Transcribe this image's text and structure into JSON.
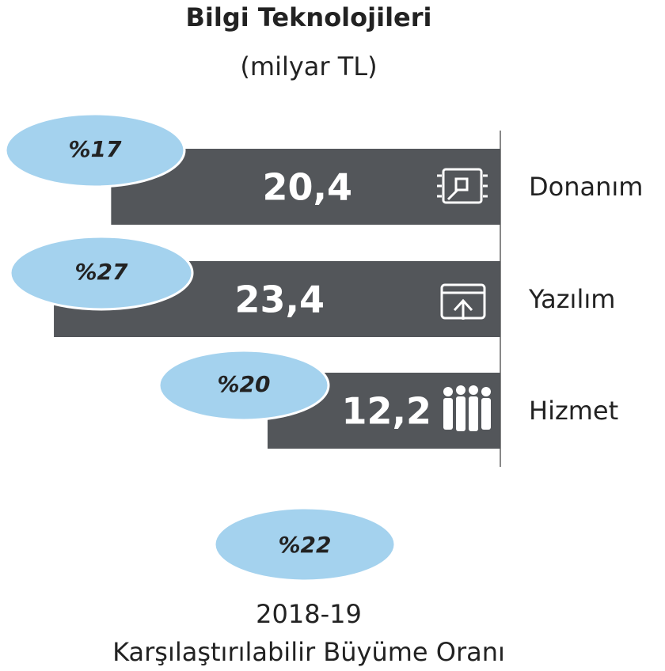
{
  "chart_data": {
    "type": "bar",
    "orientation": "horizontal",
    "title": "Bilgi Teknolojileri",
    "subtitle": "(milyar TL)",
    "categories": [
      "Donanım",
      "Yazılım",
      "Hizmet"
    ],
    "values": [
      20.4,
      23.4,
      12.2
    ],
    "value_labels": [
      "20,4",
      "23,4",
      "12,2"
    ],
    "color": "#53565a",
    "growth_labels": [
      "%17",
      "%27",
      "%20"
    ],
    "growth_color": "#a4d2ee",
    "total_growth_label": "%22",
    "footer": [
      "2018-19",
      "Karşılaştırılabilir Büyüme Oranı"
    ]
  }
}
